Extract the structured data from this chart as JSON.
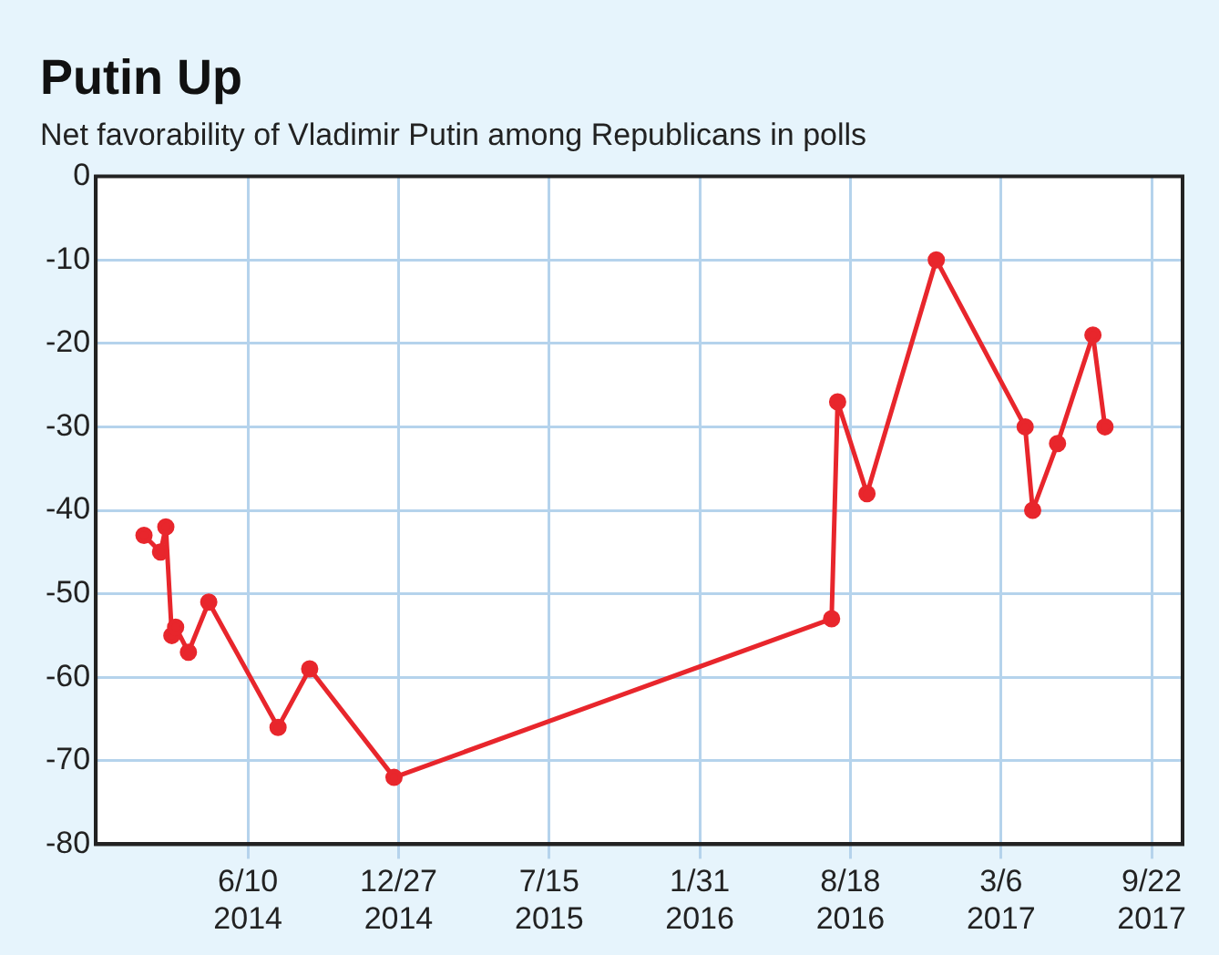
{
  "chart_data": {
    "type": "line",
    "title": "Putin Up",
    "subtitle": "Net favorability of Vladimir Putin among Republicans in polls",
    "x": [
      "2014-01-23",
      "2014-02-14",
      "2014-02-21",
      "2014-03-01",
      "2014-03-06",
      "2014-03-23",
      "2014-04-19",
      "2014-07-20",
      "2014-08-31",
      "2014-12-21",
      "2016-07-24",
      "2016-08-01",
      "2016-09-09",
      "2016-12-10",
      "2017-04-07",
      "2017-04-17",
      "2017-05-20",
      "2017-07-06",
      "2017-07-22"
    ],
    "series": [
      {
        "color": "#e8262c",
        "values": [
          -43,
          -45,
          -42,
          -55,
          -54,
          -57,
          -51,
          -66,
          -59,
          -72,
          -53,
          -27,
          -38,
          -10,
          -30,
          -40,
          -32,
          -19,
          -30
        ]
      }
    ],
    "xlim": [
      "2013-11-20",
      "2017-11-02"
    ],
    "xticks": [
      {
        "value": "2014-06-10",
        "label": "6/10\n2014"
      },
      {
        "value": "2014-12-27",
        "label": "12/27\n2014"
      },
      {
        "value": "2015-07-15",
        "label": "7/15\n2015"
      },
      {
        "value": "2016-01-31",
        "label": "1/31\n2016"
      },
      {
        "value": "2016-08-18",
        "label": "8/18\n2016"
      },
      {
        "value": "2017-03-06",
        "label": "3/6\n2017"
      },
      {
        "value": "2017-09-22",
        "label": "9/22\n2017"
      }
    ],
    "ylim": [
      -80,
      0
    ],
    "yticks": [
      -80,
      -70,
      -60,
      -50,
      -40,
      -30,
      -20,
      -10,
      0
    ],
    "grid": true,
    "legend": false,
    "marker": "circle",
    "line_style": "solid"
  }
}
